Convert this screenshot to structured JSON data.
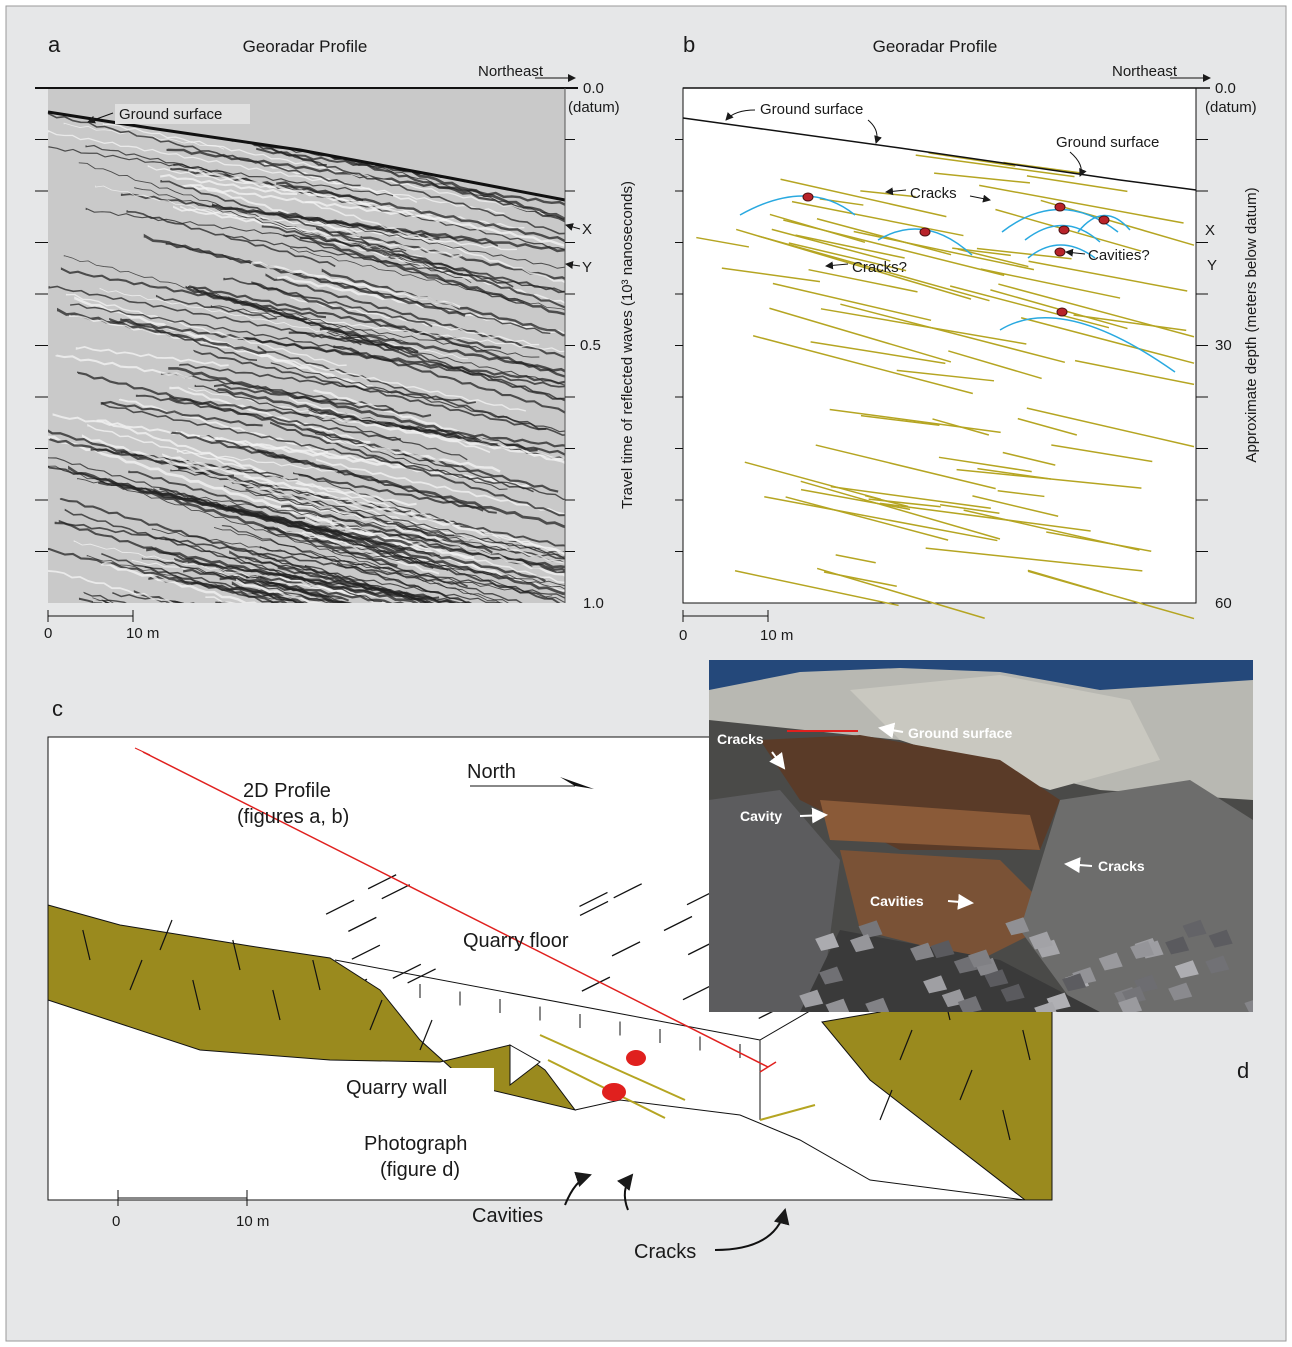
{
  "panel_a": {
    "letter": "a",
    "title": "Georadar Profile",
    "direction": "Northeast",
    "axis_top": "0.0",
    "axis_top_note": "(datum)",
    "axis_mid": "0.5",
    "axis_bottom": "1.0",
    "axis_label": "Travel time of reflected waves (10³ nanoseconds)",
    "ground_surface": "Ground surface",
    "marker_x": "X",
    "marker_y": "Y",
    "scale_start": "0",
    "scale_end": "10 m"
  },
  "panel_b": {
    "letter": "b",
    "title": "Georadar Profile",
    "direction": "Northeast",
    "axis_top": "0.0",
    "axis_top_note": "(datum)",
    "axis_mid": "30",
    "axis_bottom": "60",
    "axis_label": "Approximate depth  (meters below datum)",
    "ground_surface_left": "Ground surface",
    "ground_surface_right": "Ground surface",
    "cracks": "Cracks",
    "cracks_question": "Cracks?",
    "cavities_question": "Cavities?",
    "marker_x": "X",
    "marker_y": "Y",
    "scale_start": "0",
    "scale_end": "10 m"
  },
  "panel_c": {
    "letter": "c",
    "profile": "2D Profile",
    "profile_note": "(figures a, b)",
    "north": "North",
    "quarry_floor": "Quarry floor",
    "quarry_wall": "Quarry wall",
    "photograph": "Photograph",
    "photograph_note": "(figure d)",
    "cavities": "Cavities",
    "cracks": "Cracks",
    "scale_start": "0",
    "scale_end": "10 m"
  },
  "panel_d": {
    "letter": "d",
    "ground_surface": "Ground surface",
    "cracks_left": "Cracks",
    "cavity": "Cavity",
    "cracks_right": "Cracks",
    "cavities": "Cavities"
  }
}
